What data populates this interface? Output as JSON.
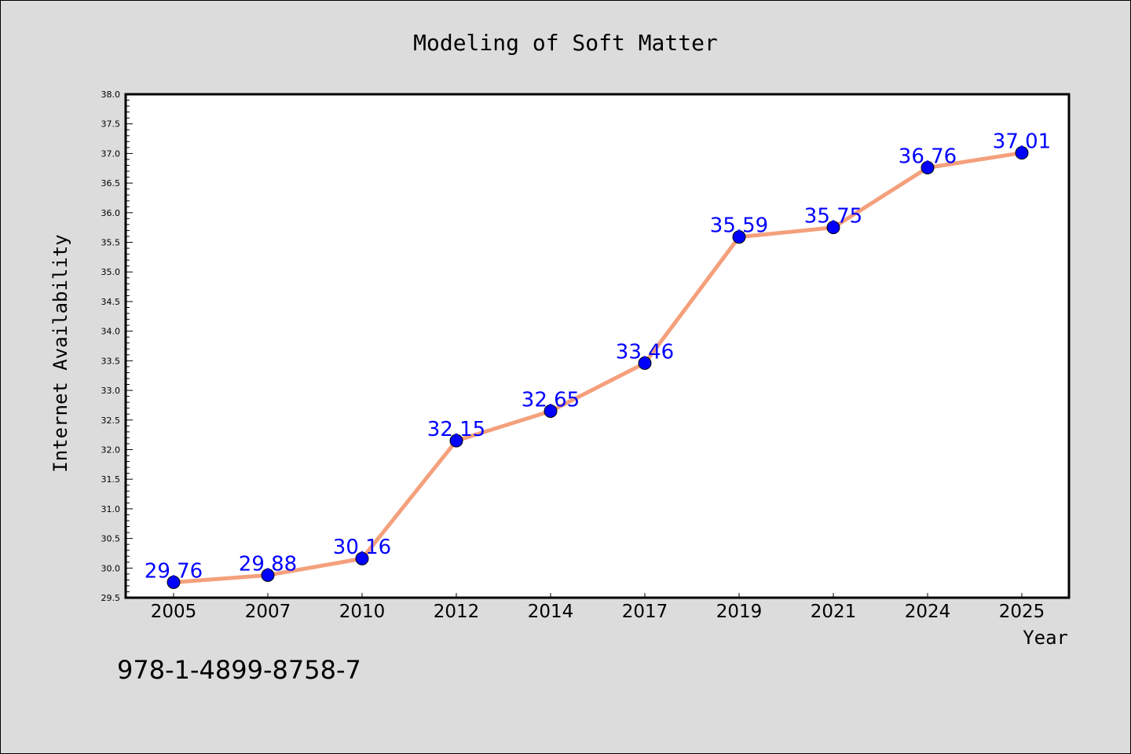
{
  "figure": {
    "isbn": "978-1-4899-8758-7"
  },
  "colors": {
    "line": "#f4a07c",
    "marker": "#0000ff",
    "label": "#0000ff",
    "background": "#dcdcdc",
    "plot_area": "#ffffff"
  },
  "chart_data": {
    "type": "line",
    "title": "Modeling of Soft Matter",
    "xlabel": "Year",
    "ylabel": "Internet Availability",
    "categories": [
      "2005",
      "2007",
      "2010",
      "2012",
      "2014",
      "2017",
      "2019",
      "2021",
      "2024",
      "2025"
    ],
    "series": [
      {
        "values": [
          29.76,
          29.88,
          30.16,
          32.15,
          32.65,
          33.46,
          35.59,
          35.75,
          36.76,
          37.01
        ],
        "labels": [
          "29.76",
          "29.88",
          "30.16",
          "32.15",
          "32.65",
          "33.46",
          "35.59",
          "35.75",
          "36.76",
          "37.01"
        ]
      }
    ],
    "ylim": [
      29.5,
      38.0
    ],
    "yticks": [
      "29.5",
      "30.0",
      "30.5",
      "31.0",
      "31.5",
      "32.0",
      "32.5",
      "33.0",
      "33.5",
      "34.0",
      "34.5",
      "35.0",
      "35.5",
      "36.0",
      "36.5",
      "37.0",
      "37.5",
      "38.0"
    ],
    "grid": false,
    "marker": "circle"
  }
}
